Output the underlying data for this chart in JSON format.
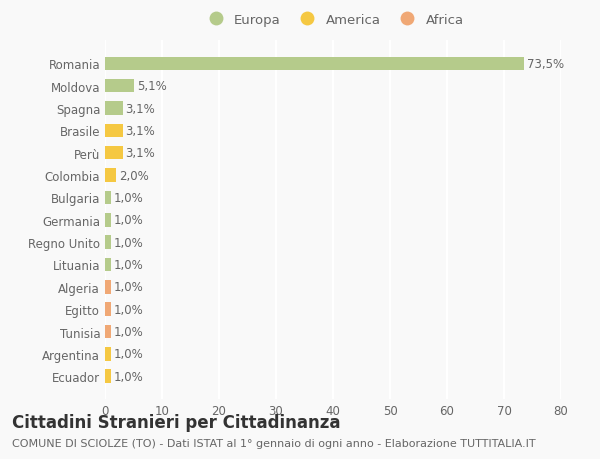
{
  "title": "Cittadini Stranieri per Cittadinanza",
  "subtitle": "COMUNE DI SCIOLZE (TO) - Dati ISTAT al 1° gennaio di ogni anno - Elaborazione TUTTITALIA.IT",
  "categories": [
    "Romania",
    "Moldova",
    "Spagna",
    "Brasile",
    "Perù",
    "Colombia",
    "Bulgaria",
    "Germania",
    "Regno Unito",
    "Lituania",
    "Algeria",
    "Egitto",
    "Tunisia",
    "Argentina",
    "Ecuador"
  ],
  "values": [
    73.5,
    5.1,
    3.1,
    3.1,
    3.1,
    2.0,
    1.0,
    1.0,
    1.0,
    1.0,
    1.0,
    1.0,
    1.0,
    1.0,
    1.0
  ],
  "labels": [
    "73,5%",
    "5,1%",
    "3,1%",
    "3,1%",
    "3,1%",
    "2,0%",
    "1,0%",
    "1,0%",
    "1,0%",
    "1,0%",
    "1,0%",
    "1,0%",
    "1,0%",
    "1,0%",
    "1,0%"
  ],
  "continents": [
    "Europa",
    "Europa",
    "Europa",
    "America",
    "America",
    "America",
    "Europa",
    "Europa",
    "Europa",
    "Europa",
    "Africa",
    "Africa",
    "Africa",
    "America",
    "America"
  ],
  "colors": {
    "Europa": "#b5cb8b",
    "America": "#f5c842",
    "Africa": "#f0a875"
  },
  "legend_order": [
    "Europa",
    "America",
    "Africa"
  ],
  "legend_colors": {
    "Europa": "#b5cb8b",
    "America": "#f5c842",
    "Africa": "#f0a875"
  },
  "xlim": [
    0,
    80
  ],
  "xticks": [
    0,
    10,
    20,
    30,
    40,
    50,
    60,
    70,
    80
  ],
  "background_color": "#f9f9f9",
  "grid_color": "#ffffff",
  "bar_height": 0.6,
  "title_fontsize": 12,
  "subtitle_fontsize": 8,
  "label_fontsize": 8.5,
  "tick_fontsize": 8.5,
  "legend_fontsize": 9.5
}
